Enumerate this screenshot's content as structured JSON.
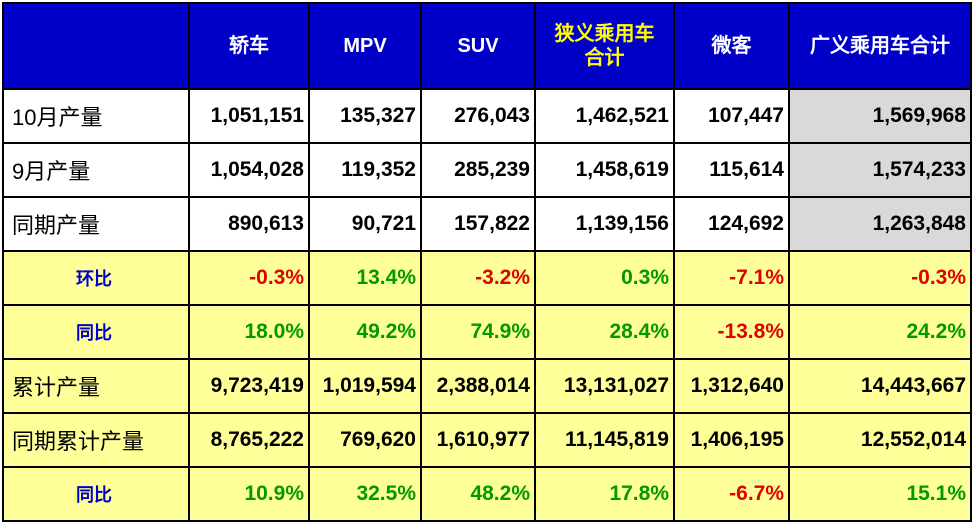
{
  "header": {
    "corner": "",
    "columns": [
      "轿车",
      "MPV",
      "SUV",
      "狭义乘用车合计",
      "微客",
      "广义乘用车合计"
    ]
  },
  "rows": [
    {
      "label": "10月产量",
      "values": [
        "1,051,151",
        "135,327",
        "276,043",
        "1,462,521",
        "107,447",
        "1,569,968"
      ]
    },
    {
      "label": "9月产量",
      "values": [
        "1,054,028",
        "119,352",
        "285,239",
        "1,458,619",
        "115,614",
        "1,574,233"
      ]
    },
    {
      "label": "同期产量",
      "values": [
        "890,613",
        "90,721",
        "157,822",
        "1,139,156",
        "124,692",
        "1,263,848"
      ]
    },
    {
      "label": "环比",
      "values": [
        "-0.3%",
        "13.4%",
        "-3.2%",
        "0.3%",
        "-7.1%",
        "-0.3%"
      ]
    },
    {
      "label": "同比",
      "values": [
        "18.0%",
        "49.2%",
        "74.9%",
        "28.4%",
        "-13.8%",
        "24.2%"
      ]
    },
    {
      "label": "累计产量",
      "values": [
        "9,723,419",
        "1,019,594",
        "2,388,014",
        "13,131,027",
        "1,312,640",
        "14,443,667"
      ]
    },
    {
      "label": "同期累计产量",
      "values": [
        "8,765,222",
        "769,620",
        "1,610,977",
        "11,145,819",
        "1,406,195",
        "12,552,014"
      ]
    },
    {
      "label": "同比",
      "values": [
        "10.9%",
        "32.5%",
        "48.2%",
        "17.8%",
        "-6.7%",
        "15.1%"
      ]
    }
  ],
  "colors": {
    "header_bg": "#0000c8",
    "header_text": "#ffffff",
    "header_highlight_text": "#ffff00",
    "yellow_row_bg": "#ffff99",
    "total_col_bg": "#d9d9d9",
    "negative": "#e00000",
    "positive": "#009900",
    "pct_label": "#0000c8"
  }
}
